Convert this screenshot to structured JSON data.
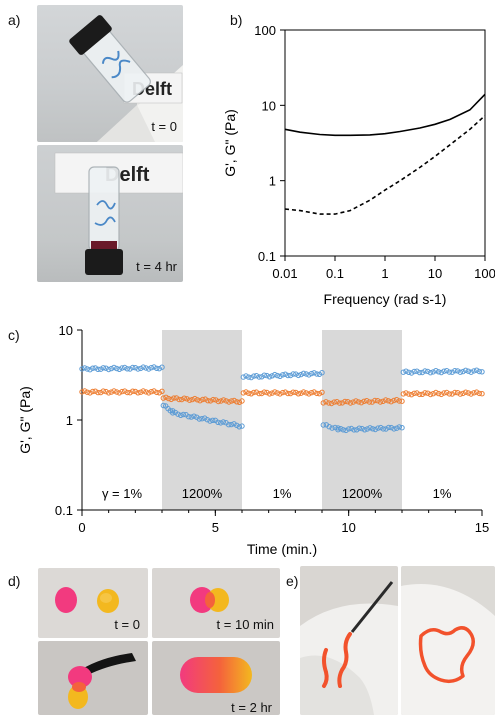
{
  "panels": {
    "a": {
      "label": "a)",
      "t0": "t = 0",
      "t4": "t = 4 hr",
      "sign": "Delft"
    },
    "b": {
      "label": "b)"
    },
    "c": {
      "label": "c)",
      "segments": [
        "γ = 1%",
        "1200%",
        "1%",
        "1200%",
        "1%"
      ]
    },
    "d": {
      "label": "d)",
      "captions": [
        "t = 0",
        "t = 10 min",
        "t = 2 hr"
      ]
    },
    "e": {
      "label": "e)"
    }
  },
  "chart_data": [
    {
      "id": "b",
      "type": "line",
      "xlabel": "Frequency (rad s-1)",
      "ylabel": "G', G\" (Pa)",
      "xscale": "log",
      "yscale": "log",
      "xlim": [
        0.01,
        100
      ],
      "ylim": [
        0.1,
        100
      ],
      "xticks": [
        "0.01",
        "0.1",
        "1",
        "10",
        "100"
      ],
      "yticks": [
        "0.1",
        "1",
        "10",
        "100"
      ],
      "series": [
        {
          "style": "solid",
          "color": "#000000",
          "x": [
            0.01,
            0.02,
            0.05,
            0.1,
            0.2,
            0.5,
            1,
            2,
            5,
            10,
            20,
            50,
            100
          ],
          "y": [
            4.8,
            4.4,
            4.1,
            4.0,
            4.0,
            4.05,
            4.2,
            4.5,
            5.0,
            5.6,
            6.5,
            8.7,
            14.0
          ]
        },
        {
          "style": "dashed",
          "color": "#000000",
          "x": [
            0.01,
            0.02,
            0.05,
            0.1,
            0.2,
            0.5,
            1,
            2,
            5,
            10,
            20,
            50,
            100
          ],
          "y": [
            0.42,
            0.4,
            0.36,
            0.36,
            0.4,
            0.55,
            0.75,
            1.0,
            1.5,
            2.1,
            3.0,
            4.8,
            7.3
          ]
        }
      ]
    },
    {
      "id": "c",
      "type": "scatter",
      "xlabel": "Time (min.)",
      "ylabel": "G', G\" (Pa)",
      "yscale": "log",
      "xlim": [
        0,
        15
      ],
      "ylim": [
        0.1,
        10
      ],
      "xticks": [
        "0",
        "5",
        "10",
        "15"
      ],
      "yticks": [
        "0.1",
        "1",
        "10"
      ],
      "shaded": [
        [
          3,
          6
        ],
        [
          9,
          12
        ]
      ],
      "series": [
        {
          "color": "#5b9bd5",
          "segments": [
            {
              "x0": 0,
              "x1": 3,
              "y0": 3.7,
              "y1": 3.8
            },
            {
              "x0": 3.05,
              "x1": 3.4,
              "y0": 1.45,
              "y1": 1.25
            },
            {
              "x0": 3.4,
              "x1": 6,
              "y0": 1.2,
              "y1": 0.85
            },
            {
              "x0": 6.05,
              "x1": 9,
              "y0": 3.0,
              "y1": 3.3
            },
            {
              "x0": 9.05,
              "x1": 9.6,
              "y0": 0.88,
              "y1": 0.8
            },
            {
              "x0": 9.6,
              "x1": 12,
              "y0": 0.78,
              "y1": 0.82
            },
            {
              "x0": 12.05,
              "x1": 15,
              "y0": 3.4,
              "y1": 3.5
            }
          ]
        },
        {
          "color": "#ed7d31",
          "segments": [
            {
              "x0": 0,
              "x1": 3,
              "y0": 2.05,
              "y1": 2.05
            },
            {
              "x0": 3.05,
              "x1": 6,
              "y0": 1.75,
              "y1": 1.6
            },
            {
              "x0": 6.05,
              "x1": 9,
              "y0": 2.0,
              "y1": 2.0
            },
            {
              "x0": 9.05,
              "x1": 12,
              "y0": 1.55,
              "y1": 1.65
            },
            {
              "x0": 12.05,
              "x1": 15,
              "y0": 1.95,
              "y1": 2.0
            }
          ]
        }
      ]
    }
  ]
}
